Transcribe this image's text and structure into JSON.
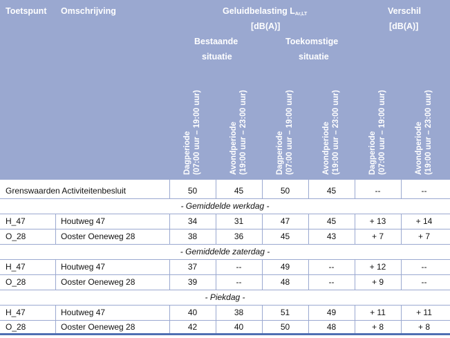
{
  "header": {
    "toetspunt": "Toetspunt",
    "omschrijving": "Omschrijving",
    "geluid_main": "Geluidbelasting L",
    "geluid_sub": "Ar,LT",
    "geluid_unit": "[dB(A)]",
    "verschil": "Verschil",
    "verschil_unit": "[dB(A)]",
    "bestaande_1": "Bestaande",
    "bestaande_2": "situatie",
    "toekomstige_1": "Toekomstige",
    "toekomstige_2": "situatie",
    "dag_1": "Dagperiode",
    "dag_2": "(07:00 uur – 19:00 uur)",
    "avond_1": "Avondperiode",
    "avond_2": "(19:00 uur – 23:00 uur)"
  },
  "grenswaarden": {
    "label": "Grenswaarden Activiteitenbesluit",
    "values": [
      "50",
      "45",
      "50",
      "45",
      "--",
      "--"
    ]
  },
  "sections": [
    {
      "title": "- Gemiddelde werkdag -",
      "rows": [
        {
          "point": "H_47",
          "desc": "Houtweg 47",
          "values": [
            "34",
            "31",
            "47",
            "45",
            "+ 13",
            "+ 14"
          ]
        },
        {
          "point": "O_28",
          "desc": "Ooster Oeneweg 28",
          "values": [
            "38",
            "36",
            "45",
            "43",
            "+ 7",
            "+ 7"
          ]
        }
      ]
    },
    {
      "title": "- Gemiddelde zaterdag -",
      "rows": [
        {
          "point": "H_47",
          "desc": "Houtweg 47",
          "values": [
            "37",
            "--",
            "49",
            "--",
            "+ 12",
            "--"
          ]
        },
        {
          "point": "O_28",
          "desc": "Ooster Oeneweg 28",
          "values": [
            "39",
            "--",
            "48",
            "--",
            "+ 9",
            "--"
          ]
        }
      ]
    },
    {
      "title": "- Piekdag -",
      "rows": [
        {
          "point": "H_47",
          "desc": "Houtweg 47",
          "values": [
            "40",
            "38",
            "51",
            "49",
            "+ 11",
            "+ 11"
          ]
        },
        {
          "point": "O_28",
          "desc": "Ooster Oeneweg 28",
          "values": [
            "42",
            "40",
            "50",
            "48",
            "+ 8",
            "+ 8"
          ]
        }
      ]
    }
  ]
}
